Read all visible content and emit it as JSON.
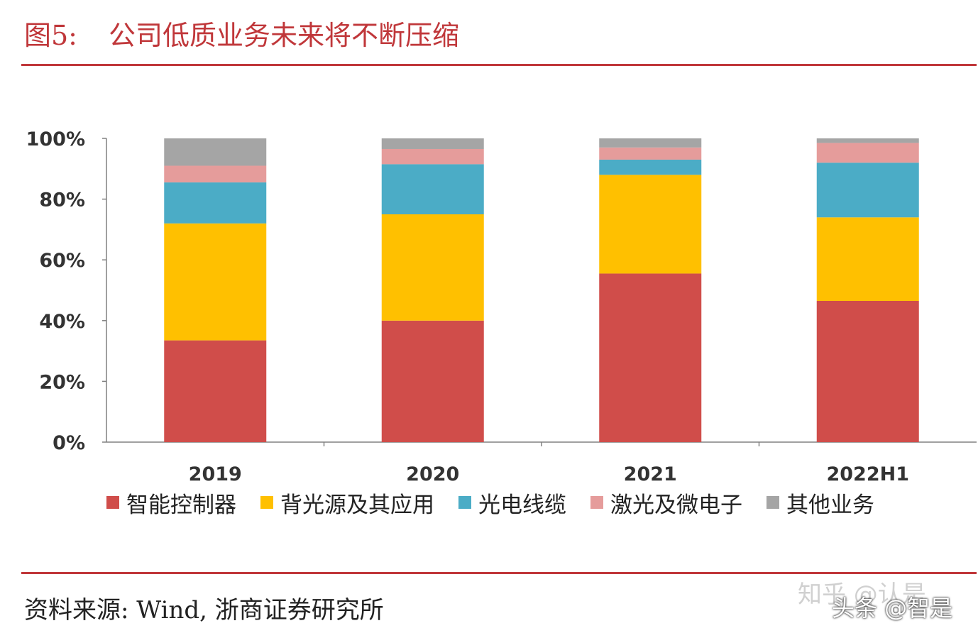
{
  "header": {
    "figure_no": "图5:",
    "title": "公司低质业务未来将不断压缩"
  },
  "chart_data": {
    "type": "bar",
    "stacked": true,
    "categories": [
      "2019",
      "2020",
      "2021",
      "2022H1"
    ],
    "series": [
      {
        "name": "智能控制器",
        "color": "#d04d4a",
        "values": [
          33.5,
          40.0,
          55.5,
          46.5
        ]
      },
      {
        "name": "背光源及其应用",
        "color": "#ffc000",
        "values": [
          38.5,
          35.0,
          32.5,
          27.5
        ]
      },
      {
        "name": "光电线缆",
        "color": "#4bacc6",
        "values": [
          13.5,
          16.5,
          5.0,
          18.0
        ]
      },
      {
        "name": "激光及微电子",
        "color": "#e59c9b",
        "values": [
          5.5,
          5.0,
          4.0,
          6.5
        ]
      },
      {
        "name": "其他业务",
        "color": "#a5a5a5",
        "values": [
          9.0,
          3.5,
          3.0,
          1.5
        ]
      }
    ],
    "ylim": [
      0,
      100
    ],
    "yticks": [
      "0%",
      "20%",
      "40%",
      "60%",
      "80%",
      "100%"
    ],
    "grid": false,
    "legend_position": "bottom"
  },
  "footer": {
    "source": "资料来源:  Wind, 浙商证券研究所"
  },
  "watermark": {
    "line1": "知乎 @认是",
    "line2": "头条 @智是"
  }
}
